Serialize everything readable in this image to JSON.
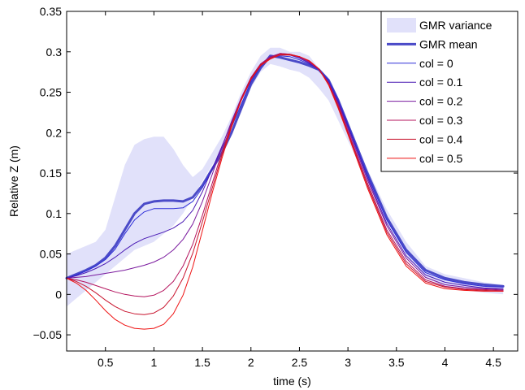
{
  "chart_data": {
    "type": "line",
    "xlabel": "time (s)",
    "ylabel": "Relative Z (m)",
    "xlim": [
      0.1,
      4.75
    ],
    "ylim": [
      -0.07,
      0.35
    ],
    "xticks": [
      0.5,
      1,
      1.5,
      2,
      2.5,
      3,
      3.5,
      4,
      4.5
    ],
    "xtick_labels": [
      "0.5",
      "1",
      "1.5",
      "2",
      "2.5",
      "3",
      "3.5",
      "4",
      "4.5"
    ],
    "yticks": [
      -0.05,
      0,
      0.05,
      0.1,
      0.15,
      0.2,
      0.25,
      0.3,
      0.35
    ],
    "ytick_labels": [
      "−0.05",
      "0",
      "0.05",
      "0.1",
      "0.15",
      "0.2",
      "0.25",
      "0.3",
      "0.35"
    ],
    "grid": false,
    "legend_position": "top-right",
    "variance_band": {
      "name": "GMR variance",
      "color": "#e1e1fa",
      "x": [
        0.1,
        0.2,
        0.3,
        0.4,
        0.5,
        0.6,
        0.7,
        0.8,
        0.9,
        1.0,
        1.1,
        1.2,
        1.3,
        1.4,
        1.5,
        1.6,
        1.7,
        1.8,
        1.9,
        2.0,
        2.1,
        2.2,
        2.3,
        2.4,
        2.5,
        2.6,
        2.7,
        2.8,
        2.9,
        3.0,
        3.2,
        3.4,
        3.6,
        3.8,
        4.0,
        4.2,
        4.4,
        4.6
      ],
      "upper": [
        0.05,
        0.055,
        0.06,
        0.065,
        0.08,
        0.12,
        0.16,
        0.185,
        0.192,
        0.195,
        0.195,
        0.18,
        0.16,
        0.145,
        0.155,
        0.175,
        0.195,
        0.22,
        0.25,
        0.275,
        0.295,
        0.305,
        0.305,
        0.3,
        0.3,
        0.295,
        0.28,
        0.26,
        0.235,
        0.205,
        0.155,
        0.105,
        0.065,
        0.035,
        0.025,
        0.02,
        0.015,
        0.012
      ],
      "lower": [
        -0.015,
        -0.005,
        0.005,
        0.015,
        0.025,
        0.035,
        0.045,
        0.055,
        0.06,
        0.065,
        0.075,
        0.085,
        0.1,
        0.12,
        0.14,
        0.16,
        0.18,
        0.2,
        0.225,
        0.255,
        0.275,
        0.285,
        0.282,
        0.278,
        0.275,
        0.268,
        0.255,
        0.24,
        0.215,
        0.19,
        0.14,
        0.09,
        0.05,
        0.02,
        0.01,
        0.005,
        0.002,
        0.0
      ]
    },
    "series": [
      {
        "name": "GMR mean",
        "color": "#4b4bc8",
        "width": 3,
        "x": [
          0.1,
          0.2,
          0.3,
          0.4,
          0.5,
          0.6,
          0.7,
          0.8,
          0.9,
          1.0,
          1.1,
          1.2,
          1.3,
          1.4,
          1.5,
          1.6,
          1.7,
          1.8,
          1.9,
          2.0,
          2.1,
          2.2,
          2.3,
          2.4,
          2.5,
          2.6,
          2.7,
          2.8,
          2.9,
          3.0,
          3.2,
          3.4,
          3.6,
          3.8,
          4.0,
          4.2,
          4.4,
          4.6
        ],
        "y": [
          0.02,
          0.025,
          0.03,
          0.036,
          0.045,
          0.06,
          0.08,
          0.1,
          0.112,
          0.115,
          0.116,
          0.116,
          0.115,
          0.12,
          0.135,
          0.155,
          0.175,
          0.2,
          0.23,
          0.26,
          0.28,
          0.295,
          0.293,
          0.29,
          0.287,
          0.283,
          0.278,
          0.265,
          0.24,
          0.21,
          0.15,
          0.095,
          0.055,
          0.03,
          0.02,
          0.015,
          0.012,
          0.01
        ]
      },
      {
        "name": "col = 0",
        "color": "#2e2ed8",
        "width": 1,
        "x": [
          0.1,
          0.2,
          0.3,
          0.4,
          0.5,
          0.6,
          0.7,
          0.8,
          0.9,
          1.0,
          1.1,
          1.2,
          1.3,
          1.4,
          1.5,
          1.6,
          1.7,
          1.8,
          1.9,
          2.0,
          2.1,
          2.2,
          2.3,
          2.4,
          2.5,
          2.6,
          2.7,
          2.8,
          2.9,
          3.0,
          3.2,
          3.4,
          3.6,
          3.8,
          4.0,
          4.2,
          4.4,
          4.6
        ],
        "y": [
          0.02,
          0.024,
          0.029,
          0.035,
          0.043,
          0.056,
          0.075,
          0.092,
          0.102,
          0.106,
          0.106,
          0.106,
          0.107,
          0.115,
          0.132,
          0.155,
          0.18,
          0.207,
          0.235,
          0.263,
          0.282,
          0.292,
          0.295,
          0.294,
          0.29,
          0.285,
          0.278,
          0.265,
          0.24,
          0.21,
          0.148,
          0.092,
          0.052,
          0.027,
          0.018,
          0.013,
          0.01,
          0.009
        ]
      },
      {
        "name": "col = 0.1",
        "color": "#4a1ab4",
        "width": 1,
        "x": [
          0.1,
          0.2,
          0.3,
          0.4,
          0.5,
          0.6,
          0.7,
          0.8,
          0.9,
          1.0,
          1.1,
          1.2,
          1.3,
          1.4,
          1.5,
          1.6,
          1.7,
          1.8,
          1.9,
          2.0,
          2.1,
          2.2,
          2.3,
          2.4,
          2.5,
          2.6,
          2.7,
          2.8,
          2.9,
          3.0,
          3.2,
          3.4,
          3.6,
          3.8,
          4.0,
          4.2,
          4.4,
          4.6
        ],
        "y": [
          0.02,
          0.023,
          0.027,
          0.032,
          0.038,
          0.046,
          0.055,
          0.063,
          0.069,
          0.073,
          0.077,
          0.082,
          0.09,
          0.104,
          0.127,
          0.155,
          0.183,
          0.212,
          0.24,
          0.265,
          0.283,
          0.293,
          0.297,
          0.296,
          0.292,
          0.286,
          0.278,
          0.263,
          0.238,
          0.208,
          0.145,
          0.088,
          0.048,
          0.024,
          0.015,
          0.011,
          0.008,
          0.007
        ]
      },
      {
        "name": "col = 0.2",
        "color": "#7a1a9e",
        "width": 1,
        "x": [
          0.1,
          0.2,
          0.3,
          0.4,
          0.5,
          0.6,
          0.7,
          0.8,
          0.9,
          1.0,
          1.1,
          1.2,
          1.3,
          1.4,
          1.5,
          1.6,
          1.7,
          1.8,
          1.9,
          2.0,
          2.1,
          2.2,
          2.3,
          2.4,
          2.5,
          2.6,
          2.7,
          2.8,
          2.9,
          3.0,
          3.2,
          3.4,
          3.6,
          3.8,
          4.0,
          4.2,
          4.4,
          4.6
        ],
        "y": [
          0.02,
          0.021,
          0.022,
          0.024,
          0.026,
          0.028,
          0.03,
          0.033,
          0.036,
          0.04,
          0.046,
          0.055,
          0.068,
          0.087,
          0.115,
          0.148,
          0.182,
          0.214,
          0.243,
          0.268,
          0.285,
          0.294,
          0.298,
          0.297,
          0.293,
          0.287,
          0.278,
          0.262,
          0.236,
          0.205,
          0.142,
          0.085,
          0.045,
          0.021,
          0.012,
          0.009,
          0.007,
          0.006
        ]
      },
      {
        "name": "col = 0.3",
        "color": "#b4145e",
        "width": 1,
        "x": [
          0.1,
          0.2,
          0.3,
          0.4,
          0.5,
          0.6,
          0.7,
          0.8,
          0.9,
          1.0,
          1.1,
          1.2,
          1.3,
          1.4,
          1.5,
          1.6,
          1.7,
          1.8,
          1.9,
          2.0,
          2.1,
          2.2,
          2.3,
          2.4,
          2.5,
          2.6,
          2.7,
          2.8,
          2.9,
          3.0,
          3.2,
          3.4,
          3.6,
          3.8,
          4.0,
          4.2,
          4.4,
          4.6
        ],
        "y": [
          0.02,
          0.018,
          0.015,
          0.011,
          0.007,
          0.003,
          0.0,
          -0.002,
          -0.003,
          -0.001,
          0.005,
          0.016,
          0.035,
          0.062,
          0.098,
          0.137,
          0.176,
          0.211,
          0.242,
          0.268,
          0.285,
          0.293,
          0.298,
          0.297,
          0.294,
          0.288,
          0.279,
          0.261,
          0.234,
          0.202,
          0.138,
          0.08,
          0.041,
          0.018,
          0.01,
          0.007,
          0.006,
          0.005
        ]
      },
      {
        "name": "col = 0.4",
        "color": "#c8142e",
        "width": 1,
        "x": [
          0.1,
          0.2,
          0.3,
          0.4,
          0.5,
          0.6,
          0.7,
          0.8,
          0.9,
          1.0,
          1.1,
          1.2,
          1.3,
          1.4,
          1.5,
          1.6,
          1.7,
          1.8,
          1.9,
          2.0,
          2.1,
          2.2,
          2.3,
          2.4,
          2.5,
          2.6,
          2.7,
          2.8,
          2.9,
          3.0,
          3.2,
          3.4,
          3.6,
          3.8,
          4.0,
          4.2,
          4.4,
          4.6
        ],
        "y": [
          0.02,
          0.016,
          0.01,
          0.002,
          -0.007,
          -0.015,
          -0.021,
          -0.024,
          -0.025,
          -0.023,
          -0.016,
          -0.002,
          0.02,
          0.051,
          0.09,
          0.131,
          0.172,
          0.209,
          0.241,
          0.267,
          0.284,
          0.292,
          0.297,
          0.297,
          0.294,
          0.289,
          0.279,
          0.26,
          0.232,
          0.2,
          0.135,
          0.077,
          0.038,
          0.016,
          0.009,
          0.006,
          0.005,
          0.004
        ]
      },
      {
        "name": "col = 0.5",
        "color": "#ee1111",
        "width": 1,
        "x": [
          0.1,
          0.2,
          0.3,
          0.4,
          0.5,
          0.6,
          0.7,
          0.8,
          0.9,
          1.0,
          1.1,
          1.2,
          1.3,
          1.4,
          1.5,
          1.6,
          1.7,
          1.8,
          1.9,
          2.0,
          2.1,
          2.2,
          2.3,
          2.4,
          2.5,
          2.6,
          2.7,
          2.8,
          2.9,
          3.0,
          3.2,
          3.4,
          3.6,
          3.8,
          4.0,
          4.2,
          4.4,
          4.6
        ],
        "y": [
          0.02,
          0.014,
          0.005,
          -0.007,
          -0.02,
          -0.031,
          -0.038,
          -0.042,
          -0.043,
          -0.042,
          -0.037,
          -0.024,
          -0.001,
          0.034,
          0.079,
          0.125,
          0.168,
          0.207,
          0.24,
          0.266,
          0.283,
          0.291,
          0.296,
          0.296,
          0.294,
          0.289,
          0.279,
          0.259,
          0.23,
          0.198,
          0.132,
          0.074,
          0.035,
          0.014,
          0.007,
          0.005,
          0.004,
          0.004
        ]
      }
    ]
  }
}
